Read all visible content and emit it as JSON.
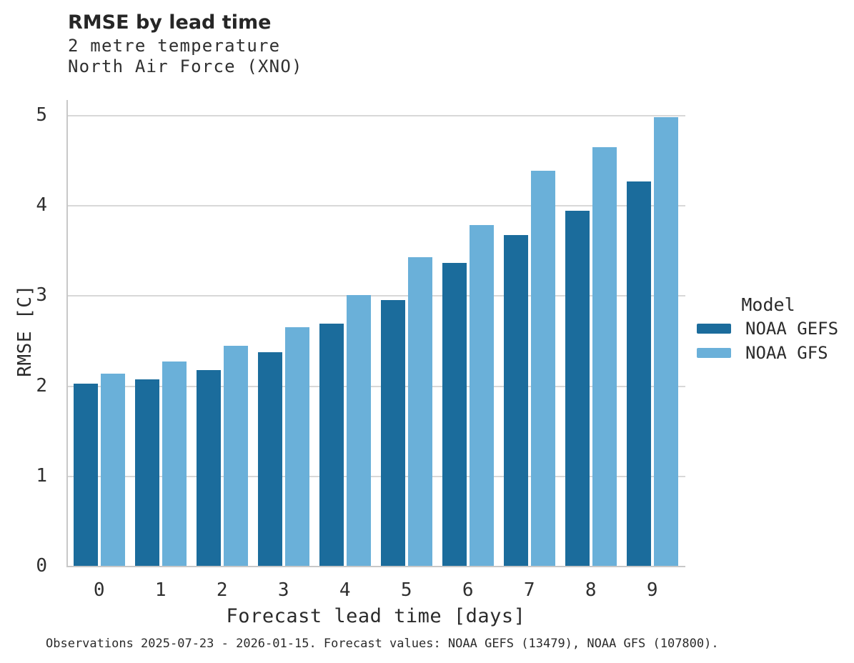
{
  "header": {
    "title": "RMSE by lead time",
    "subtitle_line1": "2 metre temperature",
    "subtitle_line2": "North Air Force (XNO)"
  },
  "chart_data": {
    "type": "bar",
    "title": "RMSE by lead time",
    "subtitle": [
      "2 metre temperature",
      "North Air Force (XNO)"
    ],
    "categories": [
      "0",
      "1",
      "2",
      "3",
      "4",
      "5",
      "6",
      "7",
      "8",
      "9"
    ],
    "series": [
      {
        "name": "NOAA GEFS",
        "color": "#1b6c9c",
        "values": [
          2.02,
          2.07,
          2.17,
          2.37,
          2.69,
          2.95,
          3.36,
          3.67,
          3.94,
          4.26
        ]
      },
      {
        "name": "NOAA GFS",
        "color": "#6ab0d9",
        "values": [
          2.13,
          2.27,
          2.44,
          2.65,
          3.0,
          3.42,
          3.78,
          4.38,
          4.64,
          4.98
        ]
      }
    ],
    "xlabel": "Forecast lead time [days]",
    "ylabel": "RMSE [C]",
    "ylim": [
      0,
      5
    ],
    "yticks": [
      "0",
      "1",
      "2",
      "3",
      "4",
      "5"
    ],
    "grid": true,
    "legend_position": "right-outside"
  },
  "legend": {
    "title": "Model",
    "items": [
      {
        "label": "NOAA GEFS",
        "color": "#1b6c9c"
      },
      {
        "label": "NOAA GFS",
        "color": "#6ab0d9"
      }
    ]
  },
  "footer": {
    "note": "Observations 2025-07-23 - 2026-01-15. Forecast values: NOAA GEFS (13479), NOAA GFS (107800)."
  },
  "colors": {
    "bar_dark": "#1b6c9c",
    "bar_light": "#6ab0d9",
    "gridline": "#d8d8d8",
    "axis_spine": "#c8c8c8",
    "text": "#2b2b2b"
  }
}
